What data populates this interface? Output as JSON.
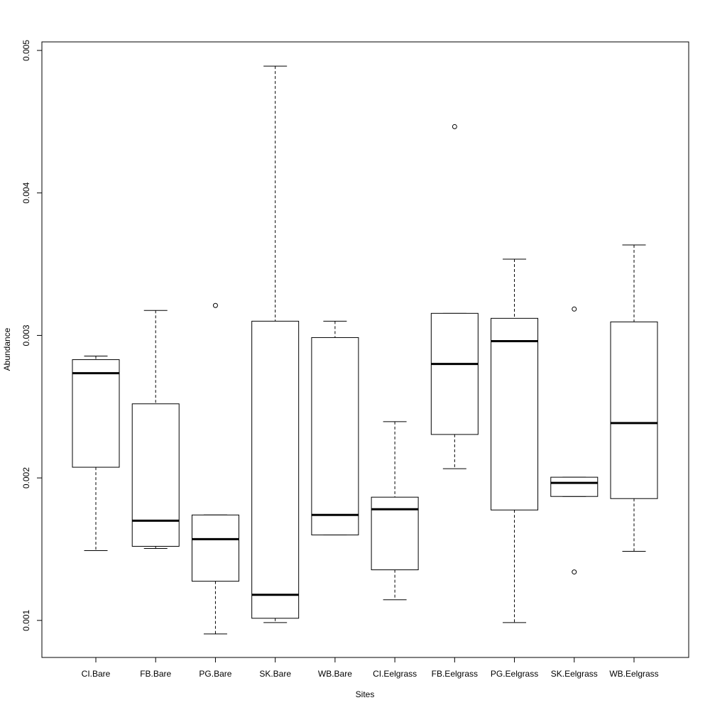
{
  "chart_data": {
    "type": "boxplot",
    "xlabel": "Sites",
    "ylabel": "Abundance",
    "ylim": [
      0.00074,
      0.00506
    ],
    "yticks": [
      "0.001",
      "0.002",
      "0.003",
      "0.004",
      "0.005"
    ],
    "ytick_values": [
      0.001,
      0.002,
      0.003,
      0.004,
      0.005
    ],
    "grid": false,
    "boxes": [
      {
        "label": "CI.Bare",
        "min": 0.00149,
        "q1": 0.002075,
        "median": 0.002735,
        "q3": 0.00283,
        "max": 0.002855,
        "outliers": []
      },
      {
        "label": "FB.Bare",
        "min": 0.001505,
        "q1": 0.00152,
        "median": 0.0017,
        "q3": 0.00252,
        "max": 0.003175,
        "outliers": []
      },
      {
        "label": "PG.Bare",
        "min": 0.000905,
        "q1": 0.001275,
        "median": 0.00157,
        "q3": 0.00174,
        "max": 0.00174,
        "outliers": [
          0.00321
        ]
      },
      {
        "label": "SK.Bare",
        "min": 0.000985,
        "q1": 0.001015,
        "median": 0.00118,
        "q3": 0.0031,
        "max": 0.00489,
        "outliers": []
      },
      {
        "label": "WB.Bare",
        "min": 0.0016,
        "q1": 0.0016,
        "median": 0.00174,
        "q3": 0.002985,
        "max": 0.0031,
        "outliers": []
      },
      {
        "label": "CI.Eelgrass",
        "min": 0.001145,
        "q1": 0.001355,
        "median": 0.00178,
        "q3": 0.001865,
        "max": 0.002395,
        "outliers": []
      },
      {
        "label": "FB.Eelgrass",
        "min": 0.002065,
        "q1": 0.002305,
        "median": 0.0028,
        "q3": 0.003155,
        "max": 0.003155,
        "outliers": [
          0.004465
        ]
      },
      {
        "label": "PG.Eelgrass",
        "min": 0.000985,
        "q1": 0.001775,
        "median": 0.00296,
        "q3": 0.00312,
        "max": 0.003535,
        "outliers": []
      },
      {
        "label": "SK.Eelgrass",
        "min": 0.00187,
        "q1": 0.00187,
        "median": 0.001965,
        "q3": 0.002005,
        "max": 0.002005,
        "outliers": [
          0.003185,
          0.00134
        ]
      },
      {
        "label": "WB.Eelgrass",
        "min": 0.001485,
        "q1": 0.001855,
        "median": 0.002385,
        "q3": 0.003095,
        "max": 0.003635,
        "outliers": []
      }
    ]
  }
}
